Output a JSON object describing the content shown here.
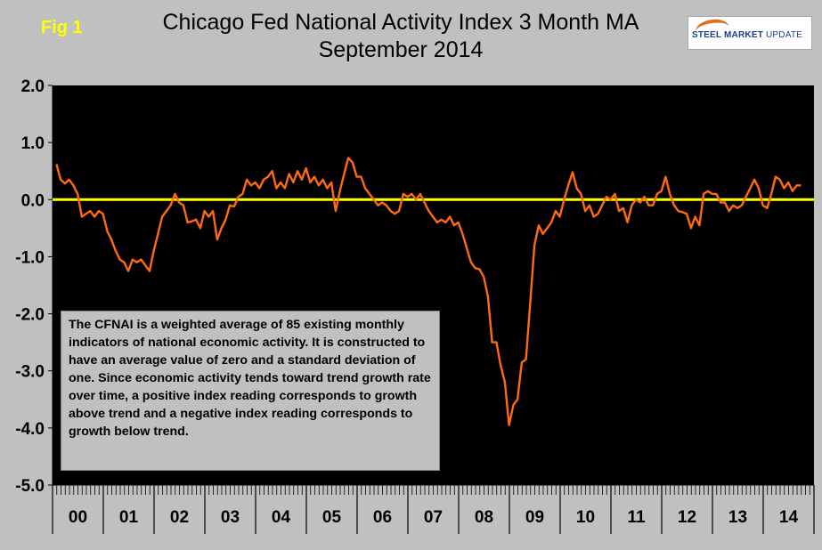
{
  "fig_label": "Fig 1",
  "title_line1": "Chicago Fed National Activity Index 3 Month MA",
  "title_line2": "September 2014",
  "logo": {
    "bold": "STEEL MARKET",
    "light": "UPDATE"
  },
  "annotation": "The CFNAI is a weighted average of 85 existing monthly indicators of national economic activity. It is constructed to have an average value of zero and a standard deviation of one. Since economic activity tends toward trend growth rate over time, a positive index reading corresponds to growth above trend and a negative index reading corresponds to growth below trend.",
  "colors": {
    "line": "#ff6a10",
    "zero_line": "#ffff00",
    "plot_bg": "#000000",
    "page_bg": "#c0c0c0"
  },
  "chart_data": {
    "type": "line",
    "title": "Chicago Fed National Activity Index 3 Month MA",
    "subtitle": "September 2014",
    "xlabel": "",
    "ylabel": "",
    "ylim": [
      -5.0,
      2.0
    ],
    "yticks": [
      2.0,
      1.0,
      0.0,
      -1.0,
      -2.0,
      -3.0,
      -4.0,
      -5.0
    ],
    "ytick_labels": [
      "2.0",
      "1.0",
      "0.0",
      "-1.0",
      "-2.0",
      "-3.0",
      "-4.0",
      "-5.0"
    ],
    "reference_line": 0.0,
    "year_labels": [
      "00",
      "01",
      "02",
      "03",
      "04",
      "05",
      "06",
      "07",
      "08",
      "09",
      "10",
      "11",
      "12",
      "13",
      "14"
    ],
    "grid": false,
    "series": [
      {
        "x_start": "2000-01",
        "frequency": "monthly",
        "values": [
          0.62,
          0.35,
          0.28,
          0.35,
          0.25,
          0.1,
          -0.3,
          -0.25,
          -0.2,
          -0.3,
          -0.2,
          -0.25,
          -0.55,
          -0.7,
          -0.9,
          -1.05,
          -1.1,
          -1.25,
          -1.05,
          -1.1,
          -1.05,
          -1.15,
          -1.25,
          -0.9,
          -0.6,
          -0.3,
          -0.2,
          -0.1,
          0.1,
          -0.05,
          -0.1,
          -0.4,
          -0.38,
          -0.35,
          -0.5,
          -0.2,
          -0.3,
          -0.2,
          -0.7,
          -0.5,
          -0.35,
          -0.1,
          -0.12,
          0.05,
          0.1,
          0.35,
          0.25,
          0.3,
          0.2,
          0.35,
          0.4,
          0.5,
          0.2,
          0.3,
          0.2,
          0.45,
          0.3,
          0.5,
          0.35,
          0.55,
          0.3,
          0.4,
          0.25,
          0.35,
          0.2,
          0.3,
          -0.2,
          0.15,
          0.45,
          0.73,
          0.65,
          0.4,
          0.4,
          0.2,
          0.1,
          0.0,
          -0.1,
          -0.05,
          -0.1,
          -0.2,
          -0.25,
          -0.2,
          0.1,
          0.05,
          0.1,
          0.0,
          0.1,
          -0.05,
          -0.2,
          -0.3,
          -0.4,
          -0.35,
          -0.4,
          -0.3,
          -0.45,
          -0.4,
          -0.6,
          -0.85,
          -1.1,
          -1.2,
          -1.22,
          -1.35,
          -1.7,
          -2.5,
          -2.5,
          -2.9,
          -3.2,
          -3.95,
          -3.6,
          -3.5,
          -2.85,
          -2.8,
          -1.8,
          -0.8,
          -0.45,
          -0.6,
          -0.5,
          -0.4,
          -0.2,
          -0.3,
          0.0,
          0.25,
          0.48,
          0.2,
          0.1,
          -0.2,
          -0.1,
          -0.3,
          -0.25,
          -0.1,
          0.05,
          0.0,
          0.1,
          -0.2,
          -0.15,
          -0.4,
          -0.1,
          0.0,
          -0.05,
          0.05,
          -0.1,
          -0.1,
          0.1,
          0.15,
          0.4,
          0.1,
          -0.1,
          -0.2,
          -0.22,
          -0.25,
          -0.5,
          -0.3,
          -0.45,
          0.1,
          0.15,
          0.1,
          0.1,
          -0.05,
          -0.05,
          -0.2,
          -0.1,
          -0.15,
          -0.1,
          0.05,
          0.2,
          0.35,
          0.2,
          -0.1,
          -0.15,
          0.1,
          0.4,
          0.35,
          0.2,
          0.3,
          0.15,
          0.25,
          0.25
        ]
      }
    ]
  }
}
